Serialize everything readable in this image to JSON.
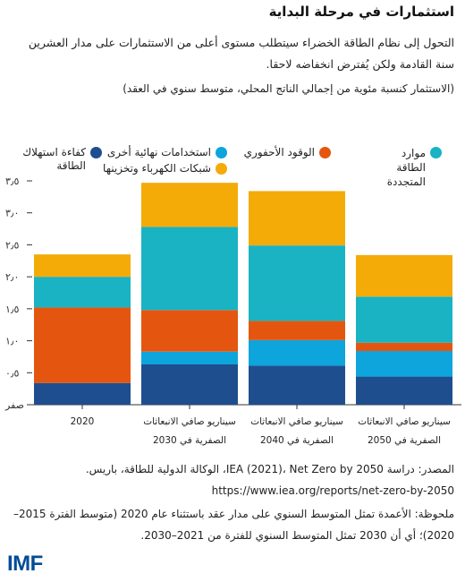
{
  "title": "استثمارات في مرحلة البداية",
  "subtitle": "التحول إلى نظام الطاقة الخضراء سيتطلب مستوى أعلى من الاستثمارات على مدار العشرين سنة القادمة ولكن يُفترض انخفاضه لاحقا.",
  "unit_note": "(الاستثمار كنسبة مئوية من إجمالي الناتج المحلي، متوسط سنوي في العقد)",
  "source": "المصدر: دراسة IEA (2021)، Net Zero by 2050، الوكالة الدولية للطاقة، باريس. https://www.iea.org/reports/net-zero-by-2050",
  "note": "ملحوظة: الأعمدة تمثل المتوسط السنوي على مدار عقد باستثناء عام 2020 (متوسط الفترة 2015–2020)؛ أي أن 2030 تمثل المتوسط السنوي للفترة من 2021–2030.",
  "logo": "IMF",
  "colors": {
    "efficiency": "#1f4e8f",
    "end_use": "#0ea4dc",
    "fossil": "#e4560f",
    "grids": "#f4ab08",
    "renewables": "#19b3c3",
    "axis": "#333333",
    "grid": "#cfcfcf"
  },
  "chart_data": {
    "type": "bar",
    "stacked": true,
    "title": "",
    "xlabel": "",
    "ylabel": "",
    "ylim": [
      0,
      3.5
    ],
    "yticks": [
      0,
      0.5,
      1.0,
      1.5,
      2.0,
      2.5,
      3.0,
      3.5
    ],
    "ytick_labels": [
      "صفر",
      "٠٫٥",
      "١٫٠",
      "١٫٥",
      "٢٫٠",
      "٢٫٥",
      "٣٫٠",
      "٣٫٥"
    ],
    "grid": false,
    "legend_position": "top",
    "categories": [
      "2020",
      "سيناريو صافي الانبعاثات الصفرية في 2030",
      "سيناريو صافي الانبعاثات الصفرية في 2040",
      "سيناريو صافي الانبعاثات الصفرية في 2050"
    ],
    "category_lines": [
      [
        "2020"
      ],
      [
        "سيناريو صافي الانبعاثات",
        "الصفرية في 2030"
      ],
      [
        "سيناريو صافي الانبعاثات",
        "الصفرية في 2040"
      ],
      [
        "سيناريو صافي الانبعاثات",
        "الصفرية في 2050"
      ]
    ],
    "series": [
      {
        "key": "efficiency",
        "name": "كفاءة استهلاك الطاقة",
        "values": [
          0.34,
          0.63,
          0.61,
          0.44
        ]
      },
      {
        "key": "end_use",
        "name": "استخدامات نهائية أخرى",
        "values": [
          0.0,
          0.2,
          0.4,
          0.4
        ]
      },
      {
        "key": "fossil",
        "name": "الوقود الأحفوري",
        "values": [
          1.18,
          0.65,
          0.3,
          0.13
        ]
      },
      {
        "key": "renewables",
        "name": "موارد الطاقة المتجددة",
        "values": [
          0.48,
          1.3,
          1.18,
          0.72
        ]
      },
      {
        "key": "grids",
        "name": "شبكات الكهرباء وتخزينها",
        "values": [
          0.35,
          0.69,
          0.85,
          0.65
        ]
      }
    ]
  }
}
